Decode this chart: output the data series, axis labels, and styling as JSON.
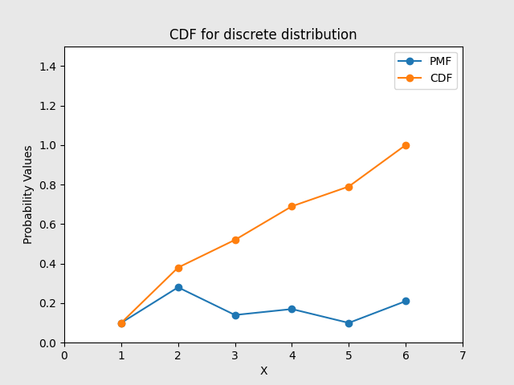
{
  "title": "CDF for discrete distribution",
  "xlabel": "X",
  "ylabel": "Probability Values",
  "x": [
    1,
    2,
    3,
    4,
    5,
    6
  ],
  "pmf": [
    0.1,
    0.28,
    0.14,
    0.17,
    0.1,
    0.21
  ],
  "cdf": [
    0.1,
    0.38,
    0.52,
    0.69,
    0.79,
    1.0
  ],
  "pmf_color": "#1f77b4",
  "cdf_color": "#ff7f0e",
  "pmf_label": "PMF",
  "cdf_label": "CDF",
  "xlim": [
    0,
    7
  ],
  "ylim": [
    0.0,
    1.5
  ],
  "yticks": [
    0.0,
    0.2,
    0.4,
    0.6,
    0.8,
    1.0,
    1.2,
    1.4
  ],
  "xticks": [
    0,
    1,
    2,
    3,
    4,
    5,
    6,
    7
  ],
  "fig_facecolor": "#e8e8e8",
  "axes_facecolor": "#ffffff"
}
